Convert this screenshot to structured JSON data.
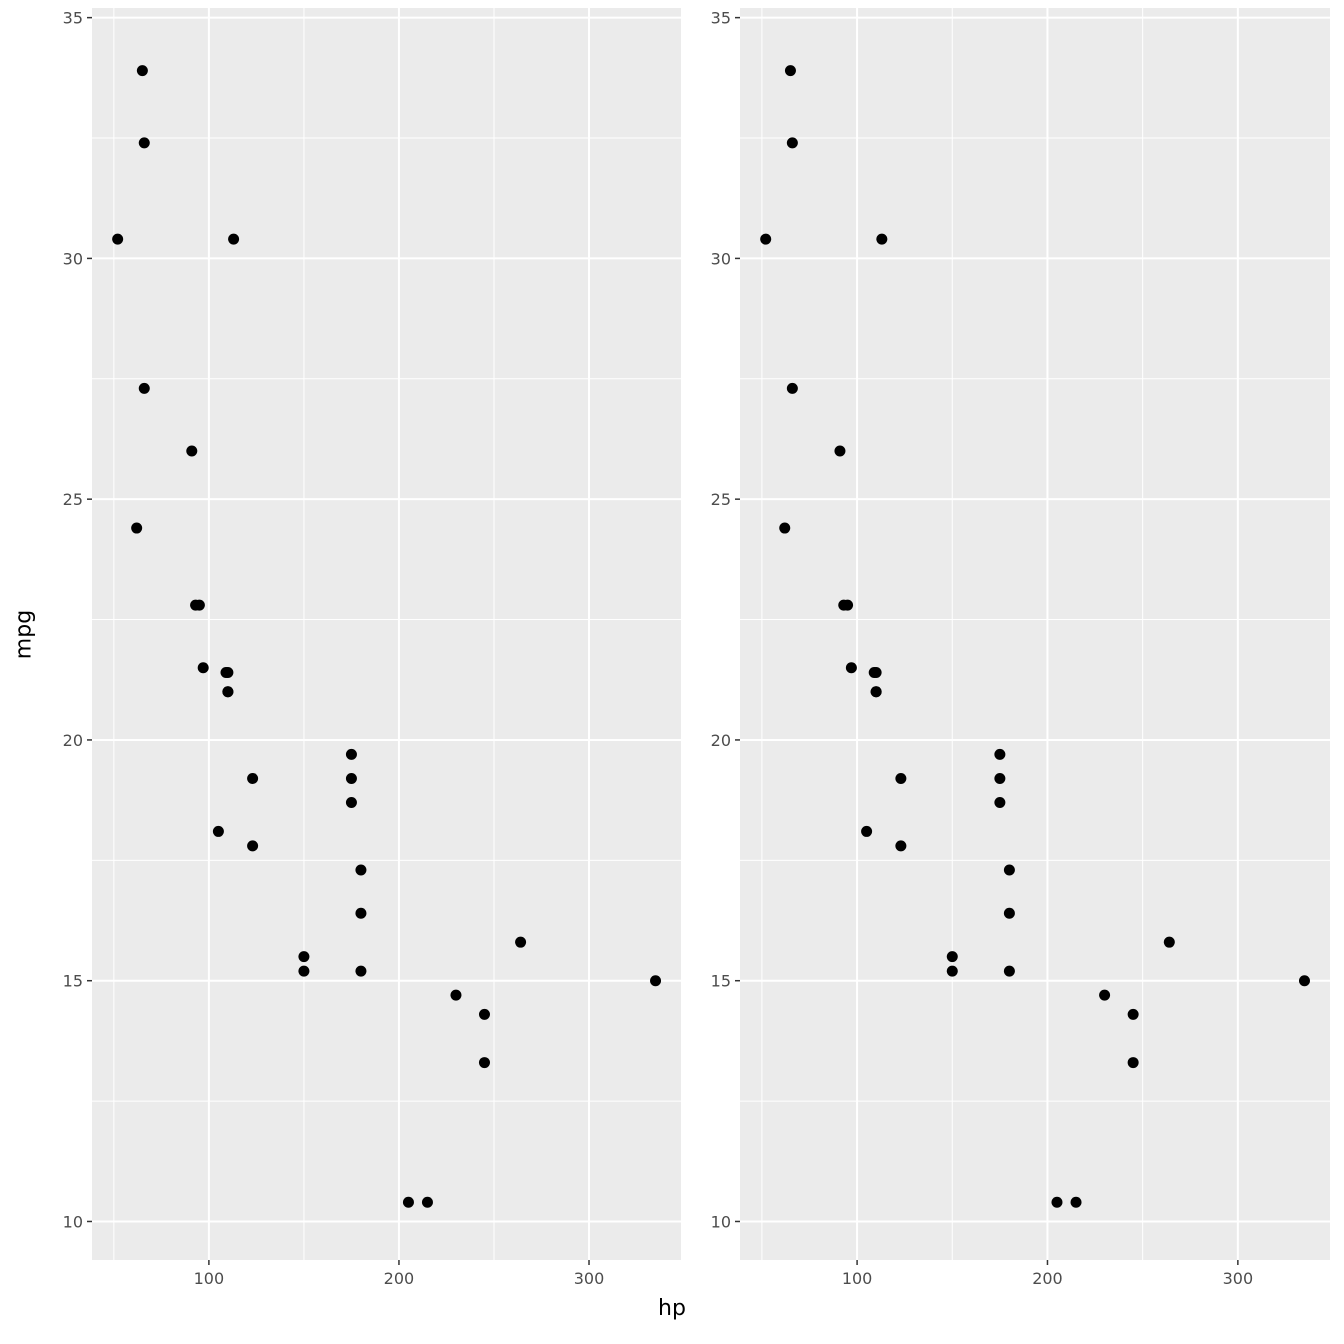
{
  "chart_data": [
    {
      "type": "scatter",
      "xlabel": "hp",
      "ylabel": "mpg",
      "xlim": [
        38.5,
        348.4
      ],
      "ylim": [
        9.2,
        35.2
      ],
      "x_ticks": [
        100,
        200,
        300
      ],
      "y_ticks": [
        10,
        15,
        20,
        25,
        30,
        35
      ],
      "grid": true,
      "point_color": "#000000",
      "panel_background": "#EBEBEB",
      "x": [
        110,
        110,
        93,
        110,
        175,
        105,
        245,
        62,
        95,
        123,
        123,
        180,
        180,
        180,
        205,
        215,
        230,
        66,
        52,
        65,
        97,
        150,
        150,
        245,
        175,
        66,
        91,
        113,
        264,
        175,
        335,
        109
      ],
      "y": [
        21.0,
        21.0,
        22.8,
        21.4,
        18.7,
        18.1,
        14.3,
        24.4,
        22.8,
        19.2,
        17.8,
        16.4,
        17.3,
        15.2,
        10.4,
        10.4,
        14.7,
        32.4,
        30.4,
        33.9,
        21.5,
        15.5,
        15.2,
        13.3,
        19.2,
        27.3,
        26.0,
        30.4,
        15.8,
        19.7,
        15.0,
        21.4
      ]
    },
    {
      "type": "scatter",
      "xlabel": "hp",
      "ylabel": "",
      "xlim": [
        38.5,
        348.4
      ],
      "ylim": [
        9.2,
        35.2
      ],
      "x_ticks": [
        100,
        200,
        300
      ],
      "y_ticks": [
        10,
        15,
        20,
        25,
        30,
        35
      ],
      "grid": true,
      "point_color": "#000000",
      "panel_background": "#EBEBEB",
      "x": [
        110,
        110,
        93,
        110,
        175,
        105,
        245,
        62,
        95,
        123,
        123,
        180,
        180,
        180,
        205,
        215,
        230,
        66,
        52,
        65,
        97,
        150,
        150,
        245,
        175,
        66,
        91,
        113,
        264,
        175,
        335,
        109
      ],
      "y": [
        21.0,
        21.0,
        22.8,
        21.4,
        18.7,
        18.1,
        14.3,
        24.4,
        22.8,
        19.2,
        17.8,
        16.4,
        17.3,
        15.2,
        10.4,
        10.4,
        14.7,
        32.4,
        30.4,
        33.9,
        21.5,
        15.5,
        15.2,
        13.3,
        19.2,
        27.3,
        26.0,
        30.4,
        15.8,
        19.7,
        15.0,
        21.4
      ]
    }
  ],
  "labels": {
    "x": "hp",
    "y": "mpg"
  }
}
